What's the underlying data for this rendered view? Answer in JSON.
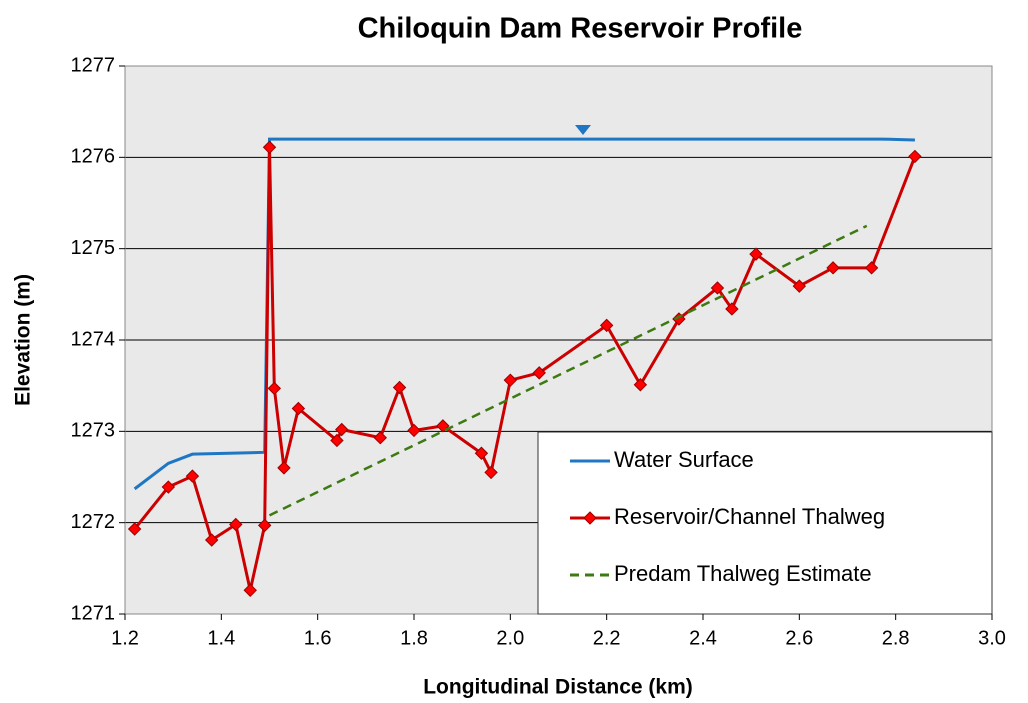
{
  "chart_data": {
    "type": "line",
    "title": "Chiloquin Dam Reservoir Profile",
    "x_label": "Longitudinal Distance (km)",
    "y_label": "Elevation (m)",
    "xlim": [
      1.2,
      3.0
    ],
    "xticks": [
      {
        "value": 1.2,
        "label": "1.2"
      },
      {
        "value": 1.4,
        "label": "1.4"
      },
      {
        "value": 1.6,
        "label": "1.6"
      },
      {
        "value": 1.8,
        "label": "1.8"
      },
      {
        "value": 2.0,
        "label": "2.0"
      },
      {
        "value": 2.2,
        "label": "2.2"
      },
      {
        "value": 2.4,
        "label": "2.4"
      },
      {
        "value": 2.6,
        "label": "2.6"
      },
      {
        "value": 2.8,
        "label": "2.8"
      },
      {
        "value": 3.0,
        "label": "3.0"
      }
    ],
    "ylim": [
      1271,
      1277
    ],
    "yticks": [
      1271,
      1272,
      1273,
      1274,
      1275,
      1276,
      1277
    ],
    "grid": true,
    "legend": "lower right",
    "series": [
      {
        "name": "Water Surface",
        "color": "#1f77c4",
        "dashed": false,
        "marker": null,
        "x": [
          1.22,
          1.29,
          1.34,
          1.49,
          1.5,
          2.77,
          2.84
        ],
        "values": [
          1272.37,
          1272.65,
          1272.75,
          1272.77,
          1276.2,
          1276.2,
          1276.19
        ]
      },
      {
        "name": "Reservoir/Channel Thalweg",
        "color": "#cc0000",
        "dashed": false,
        "marker": "diamond",
        "x": [
          1.22,
          1.29,
          1.34,
          1.38,
          1.43,
          1.46,
          1.49,
          1.5,
          1.51,
          1.53,
          1.56,
          1.64,
          1.65,
          1.73,
          1.77,
          1.8,
          1.86,
          1.94,
          1.96,
          2.0,
          2.06,
          2.2,
          2.27,
          2.35,
          2.43,
          2.46,
          2.51,
          2.6,
          2.67,
          2.75,
          2.84
        ],
        "values": [
          1271.93,
          1272.39,
          1272.51,
          1271.81,
          1271.98,
          1271.26,
          1271.97,
          1276.11,
          1273.47,
          1272.6,
          1273.25,
          1272.9,
          1273.02,
          1272.93,
          1273.48,
          1273.01,
          1273.06,
          1272.76,
          1272.55,
          1273.56,
          1273.64,
          1274.16,
          1273.51,
          1274.23,
          1274.57,
          1274.34,
          1274.94,
          1274.59,
          1274.79,
          1274.79,
          1276.01
        ]
      },
      {
        "name": "Predam Thalweg Estimate",
        "color": "#3d7a12",
        "dashed": true,
        "marker": null,
        "x": [
          1.5,
          2.74
        ],
        "values": [
          1272.08,
          1275.25
        ]
      }
    ]
  }
}
